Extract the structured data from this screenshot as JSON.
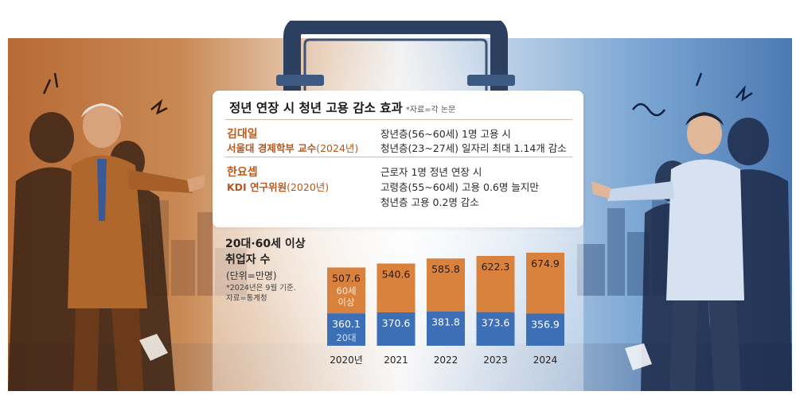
{
  "title": "정년 연장 시 청년 고용 감소 효과",
  "title_source": "*자료=각 논문",
  "studies": [
    {
      "name": "김대일",
      "affiliation": "서울대 경제학부 교수",
      "year": "(2024년)",
      "findings": [
        "장년층(56~60세) 1명 고용 시",
        "청년층(23~27세) 일자리 최대 1.14개 감소"
      ]
    },
    {
      "name": "한요셉",
      "affiliation": "KDI 연구위원",
      "year": "(2020년)",
      "findings": [
        "근로자 1명 정년 연장 시",
        "고령층(55~60세) 고용 0.6명 늘지만",
        "청년층 고용 0.2명 감소"
      ]
    }
  ],
  "chart_title_line1": "20대·60세 이상",
  "chart_title_line2": "취업자 수",
  "chart_unit": "(단위=만명)",
  "chart_note_line1": "*2024년은 9월 기준.",
  "chart_note_line2": "자료=통계청",
  "chart_data": {
    "type": "bar",
    "stacked": true,
    "categories": [
      "2020년",
      "2021",
      "2022",
      "2023",
      "2024"
    ],
    "series": [
      {
        "name": "20대",
        "values": [
          360.1,
          370.6,
          381.8,
          373.6,
          356.9
        ],
        "color": "#3d6fb6"
      },
      {
        "name": "60세 이상",
        "values": [
          507.6,
          540.6,
          585.8,
          622.3,
          674.9
        ],
        "color": "#d9823e"
      }
    ],
    "series_labels_inside_first_bar": true
  },
  "colors": {
    "accent_orange": "#c15a14",
    "bar_orange": "#d9823e",
    "bar_blue": "#3d6fb6",
    "handle_navy": "#2c3f5e"
  }
}
